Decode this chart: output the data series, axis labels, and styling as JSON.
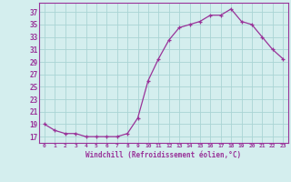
{
  "x": [
    0,
    1,
    2,
    3,
    4,
    5,
    6,
    7,
    8,
    9,
    10,
    11,
    12,
    13,
    14,
    15,
    16,
    17,
    18,
    19,
    20,
    21,
    22,
    23
  ],
  "y": [
    19,
    18,
    17.5,
    17.5,
    17,
    17,
    17,
    17,
    17.5,
    20,
    26,
    29.5,
    32.5,
    34.5,
    35,
    35.5,
    36.5,
    36.5,
    37.5,
    35.5,
    35,
    33,
    31,
    29.5
  ],
  "xlim": [
    -0.5,
    23.5
  ],
  "ylim": [
    16,
    38.5
  ],
  "yticks": [
    17,
    19,
    21,
    23,
    25,
    27,
    29,
    31,
    33,
    35,
    37
  ],
  "xticks": [
    0,
    1,
    2,
    3,
    4,
    5,
    6,
    7,
    8,
    9,
    10,
    11,
    12,
    13,
    14,
    15,
    16,
    17,
    18,
    19,
    20,
    21,
    22,
    23
  ],
  "xlabel": "Windchill (Refroidissement éolien,°C)",
  "line_color": "#993399",
  "marker": "+",
  "bg_color": "#d4eeee",
  "grid_color": "#aad4d4",
  "tick_label_color": "#993399",
  "axis_color": "#993399",
  "xlabel_color": "#993399"
}
